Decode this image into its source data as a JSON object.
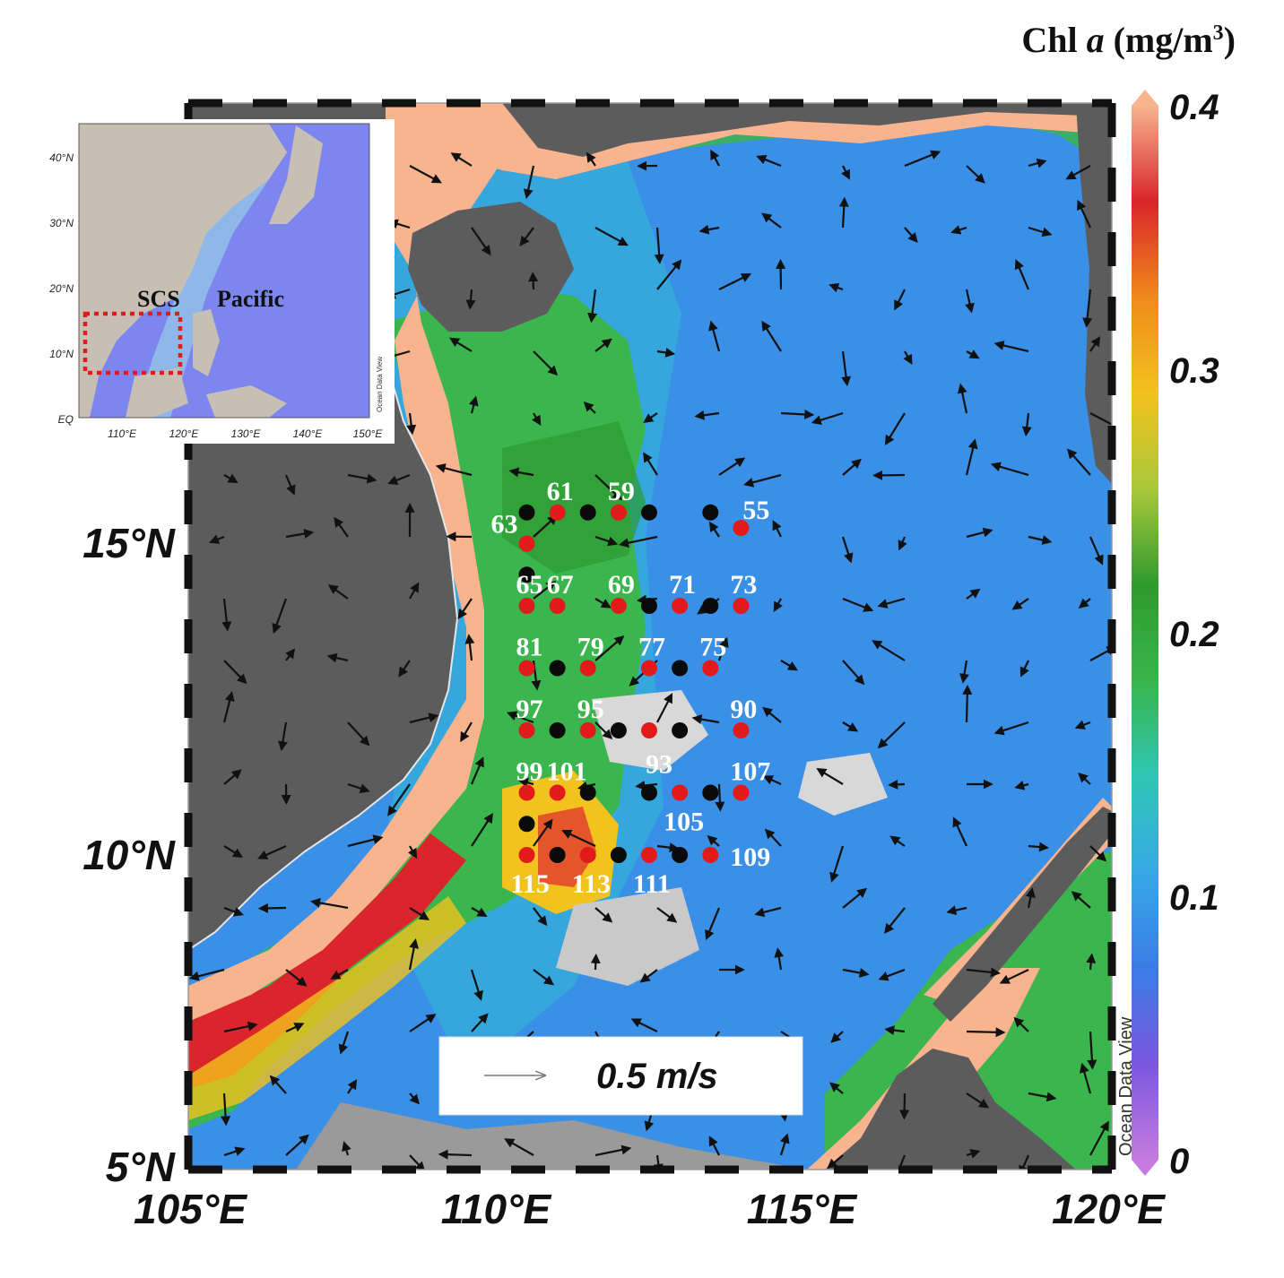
{
  "colorbar": {
    "title_main": "Chl ",
    "title_italic": "a",
    "title_unit": " (mg/m",
    "title_sup": "3",
    "title_end": ")",
    "ticks": [
      "0.4",
      "0.3",
      "0.2",
      "0.1",
      "0"
    ],
    "colors": [
      "#c57be0",
      "#7b57e0",
      "#3a7ce6",
      "#37a9e6",
      "#2fc6b4",
      "#39b54a",
      "#2e9a2e",
      "#a9c83a",
      "#f2c21e",
      "#f08a1c",
      "#d9252b",
      "#f7b48f"
    ]
  },
  "axes": {
    "x_ticks": [
      "105°E",
      "110°E",
      "115°E",
      "120°E"
    ],
    "y_ticks": [
      "15°N",
      "10°N",
      "5°N"
    ]
  },
  "legend": {
    "arrow_label": "0.5 m/s"
  },
  "watermark": "Ocean Data View",
  "inset": {
    "y_ticks": [
      "40°N",
      "30°N",
      "20°N",
      "10°N",
      "EQ"
    ],
    "x_ticks": [
      "110°E",
      "120°E",
      "130°E",
      "140°E",
      "150°E"
    ],
    "label_scs": "SCS",
    "label_pacific": "Pacific",
    "watermark": "Ocean Data View"
  },
  "stations": [
    {
      "label": "61",
      "lon": 111.0,
      "lat": 15.55,
      "color": "red"
    },
    {
      "label": "59",
      "lon": 112.0,
      "lat": 15.55,
      "color": "red"
    },
    {
      "label": "55",
      "lon": 114.0,
      "lat": 15.3,
      "color": "red"
    },
    {
      "label": "63",
      "lon": 110.5,
      "lat": 15.05,
      "color": "red"
    },
    {
      "label": "",
      "lon": 110.5,
      "lat": 15.55,
      "color": "black"
    },
    {
      "label": "",
      "lon": 111.5,
      "lat": 15.55,
      "color": "black"
    },
    {
      "label": "",
      "lon": 112.5,
      "lat": 15.55,
      "color": "black"
    },
    {
      "label": "",
      "lon": 113.5,
      "lat": 15.55,
      "color": "black"
    },
    {
      "label": "",
      "lon": 110.5,
      "lat": 14.55,
      "color": "black"
    },
    {
      "label": "65",
      "lon": 110.5,
      "lat": 14.05,
      "color": "red"
    },
    {
      "label": "67",
      "lon": 111.0,
      "lat": 14.05,
      "color": "red"
    },
    {
      "label": "69",
      "lon": 112.0,
      "lat": 14.05,
      "color": "red"
    },
    {
      "label": "71",
      "lon": 113.0,
      "lat": 14.05,
      "color": "red"
    },
    {
      "label": "73",
      "lon": 114.0,
      "lat": 14.05,
      "color": "red"
    },
    {
      "label": "",
      "lon": 112.5,
      "lat": 14.05,
      "color": "black"
    },
    {
      "label": "",
      "lon": 113.5,
      "lat": 14.05,
      "color": "black"
    },
    {
      "label": "81",
      "lon": 110.5,
      "lat": 13.05,
      "color": "red"
    },
    {
      "label": "79",
      "lon": 111.5,
      "lat": 13.05,
      "color": "red"
    },
    {
      "label": "77",
      "lon": 112.5,
      "lat": 13.05,
      "color": "red"
    },
    {
      "label": "75",
      "lon": 113.5,
      "lat": 13.05,
      "color": "red"
    },
    {
      "label": "",
      "lon": 111.0,
      "lat": 13.05,
      "color": "black"
    },
    {
      "label": "",
      "lon": 113.0,
      "lat": 13.05,
      "color": "black"
    },
    {
      "label": "97",
      "lon": 110.5,
      "lat": 12.05,
      "color": "red"
    },
    {
      "label": "95",
      "lon": 111.5,
      "lat": 12.05,
      "color": "red"
    },
    {
      "label": "",
      "lon": 112.5,
      "lat": 12.05,
      "color": "red"
    },
    {
      "label": "90",
      "lon": 114.0,
      "lat": 12.05,
      "color": "red"
    },
    {
      "label": "",
      "lon": 111.0,
      "lat": 12.05,
      "color": "black"
    },
    {
      "label": "",
      "lon": 112.0,
      "lat": 12.05,
      "color": "black"
    },
    {
      "label": "",
      "lon": 113.0,
      "lat": 12.05,
      "color": "black"
    },
    {
      "label": "99",
      "lon": 110.5,
      "lat": 11.05,
      "color": "red"
    },
    {
      "label": "101",
      "lon": 111.0,
      "lat": 11.05,
      "color": "red"
    },
    {
      "label": "105",
      "lon": 113.0,
      "lat": 11.05,
      "color": "red"
    },
    {
      "label": "107",
      "lon": 114.0,
      "lat": 11.05,
      "color": "red"
    },
    {
      "label": "",
      "lon": 111.5,
      "lat": 11.05,
      "color": "black"
    },
    {
      "label": "93",
      "lon": 112.5,
      "lat": 11.05,
      "color": "black"
    },
    {
      "label": "",
      "lon": 113.5,
      "lat": 11.05,
      "color": "black"
    },
    {
      "label": "",
      "lon": 110.5,
      "lat": 10.55,
      "color": "black"
    },
    {
      "label": "115",
      "lon": 110.5,
      "lat": 10.05,
      "color": "red"
    },
    {
      "label": "113",
      "lon": 111.5,
      "lat": 10.05,
      "color": "red"
    },
    {
      "label": "111",
      "lon": 112.5,
      "lat": 10.05,
      "color": "red"
    },
    {
      "label": "109",
      "lon": 113.5,
      "lat": 10.05,
      "color": "red"
    },
    {
      "label": "",
      "lon": 111.0,
      "lat": 10.05,
      "color": "black"
    },
    {
      "label": "",
      "lon": 112.0,
      "lat": 10.05,
      "color": "black"
    },
    {
      "label": "",
      "lon": 113.0,
      "lat": 10.05,
      "color": "black"
    }
  ]
}
